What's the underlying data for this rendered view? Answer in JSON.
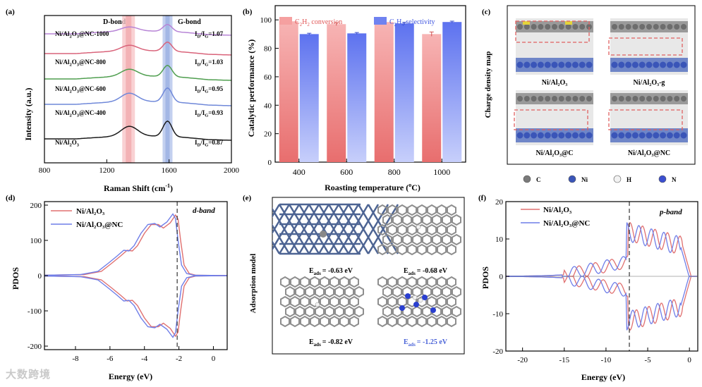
{
  "watermark": "大数跨境",
  "panels": {
    "a": {
      "label": "(a)",
      "band_d": "D-bond",
      "band_g": "G-bond",
      "xlabel": "Raman Shift (cm",
      "xlabel_sup": "-1",
      "xlabel_end": ")",
      "ylabel": "Intensity (a.u.)",
      "xticks": [
        "800",
        "1200",
        "1600",
        "2000"
      ],
      "samples": [
        {
          "name": "Ni/Al",
          "sub": "2",
          "mid": "O",
          "sub2": "3",
          "tail": "@NC-1000",
          "ratio": "1.07",
          "color": "#b784d6"
        },
        {
          "name": "Ni/Al",
          "sub": "2",
          "mid": "O",
          "sub2": "3",
          "tail": "@NC-800",
          "ratio": "1.03",
          "color": "#d9637a"
        },
        {
          "name": "Ni/Al",
          "sub": "2",
          "mid": "O",
          "sub2": "3",
          "tail": "@NC-600",
          "ratio": "0.95",
          "color": "#4f9e4f"
        },
        {
          "name": "Ni/Al",
          "sub": "2",
          "mid": "O",
          "sub2": "3",
          "tail": "@NC-400",
          "ratio": "0.93",
          "color": "#6f88d9"
        },
        {
          "name": "Ni/Al",
          "sub": "2",
          "mid": "O",
          "sub2": "3",
          "tail": "",
          "ratio": "0.87",
          "color": "#1a1a1a"
        }
      ],
      "ratio_prefix": "I",
      "ratio_sub_d": "D",
      "ratio_mid": "/I",
      "ratio_sub_g": "G",
      "ratio_eq": "="
    },
    "b": {
      "label": "(b)",
      "ylabel": "Catalytic performance (%)",
      "xlabel": "Roasting temperature (",
      "xlabel_deg": "o",
      "xlabel_end": "C)",
      "legend1": "C",
      "legend1_sub1": "2",
      "legend1_mid": "H",
      "legend1_sub2": "2",
      "legend1_tail": " conversion",
      "legend2": "C",
      "legend2_sub1": "2",
      "legend2_mid": "H",
      "legend2_sub2": "4",
      "legend2_tail": " selectivity",
      "yticks": [
        "0",
        "20",
        "40",
        "60",
        "80",
        "100"
      ]
    },
    "c": {
      "label": "(c)",
      "side_label": "Charge density map",
      "cell_labels": [
        "Ni/Al₂O₃",
        "Ni/Al₂O₃-g",
        "Ni/Al₂O₃@C",
        "Ni/Al₂O₃@NC"
      ],
      "atoms": [
        "C",
        "Ni",
        "H",
        "N"
      ]
    },
    "d": {
      "label": "(d)",
      "ylabel": "PDOS",
      "xlabel": "Energy (eV)",
      "annotation": "d-band",
      "legend": [
        "Ni/Al₂O₃",
        "Ni/Al₂O₃@NC"
      ],
      "xticks": [
        "-8",
        "-6",
        "-4",
        "-2",
        "0"
      ],
      "yticks": [
        "200",
        "100",
        "0",
        "-100",
        "-200"
      ]
    },
    "e": {
      "label": "(e)",
      "side_label": "Adsorption model",
      "energies": [
        "E",
        "E",
        "E",
        "E"
      ],
      "energy_sub": "ads",
      "energy_values": [
        "= -0.63 eV",
        "= -0.68 eV",
        "= -0.82 eV",
        "= -1.25 eV"
      ]
    },
    "f": {
      "label": "(f)",
      "ylabel": "PDOS",
      "xlabel": "Energy (eV)",
      "annotation": "p-band",
      "legend": [
        "Ni/Al₂O₃",
        "Ni/Al₂O₃@NC"
      ],
      "xticks": [
        "-20",
        "-15",
        "-10",
        "-5",
        "0"
      ],
      "yticks": [
        "20",
        "10",
        "0",
        "-10",
        "-20"
      ]
    }
  },
  "chart_data": [
    {
      "panel": "a",
      "type": "line",
      "title": "",
      "xlabel": "Raman Shift (cm-1)",
      "ylabel": "Intensity (a.u.)",
      "xlim": [
        800,
        2000
      ],
      "highlight_bands": [
        {
          "name": "D-bond",
          "center": 1340
        },
        {
          "name": "G-bond",
          "center": 1590
        }
      ],
      "series": [
        {
          "name": "Ni/Al2O3@NC-1000",
          "ID_IG": 1.07
        },
        {
          "name": "Ni/Al2O3@NC-800",
          "ID_IG": 1.03
        },
        {
          "name": "Ni/Al2O3@NC-600",
          "ID_IG": 0.95
        },
        {
          "name": "Ni/Al2O3@NC-400",
          "ID_IG": 0.93
        },
        {
          "name": "Ni/Al2O3",
          "ID_IG": 0.87
        }
      ]
    },
    {
      "panel": "b",
      "type": "bar",
      "categories": [
        "400",
        "600",
        "800",
        "1000"
      ],
      "series": [
        {
          "name": "C2H2 conversion",
          "values": [
            99,
            97,
            98.5,
            90
          ],
          "errors": [
            1.5,
            1,
            1.2,
            1.5
          ],
          "color": "#f08a8a"
        },
        {
          "name": "C2H4 selectivity",
          "values": [
            90,
            90.5,
            97.5,
            98.5
          ],
          "errors": [
            0.6,
            0.6,
            0.8,
            0.6
          ],
          "color": "#6e86f0"
        }
      ],
      "xlabel": "Roasting temperature (oC)",
      "ylabel": "Catalytic performance (%)",
      "ylim": [
        0,
        110
      ]
    },
    {
      "panel": "d",
      "type": "line",
      "xlabel": "Energy (eV)",
      "ylabel": "PDOS",
      "xlim": [
        -9.8,
        0.8
      ],
      "ylim": [
        -210,
        210
      ],
      "fermi_marker": -2.1,
      "series": [
        {
          "name": "Ni/Al2O3",
          "color": "#e07070",
          "x": [
            -9.8,
            -7.5,
            -6.5,
            -5.9,
            -5.4,
            -5.0,
            -4.7,
            -4.4,
            -4.0,
            -3.6,
            -3.2,
            -2.9,
            -2.5,
            -2.2,
            -2.05,
            -1.9,
            -1.7,
            -1.4,
            -1.0,
            0.8
          ],
          "y": [
            1,
            3,
            12,
            35,
            55,
            72,
            70,
            85,
            120,
            145,
            145,
            135,
            150,
            172,
            160,
            100,
            30,
            6,
            1,
            0
          ]
        },
        {
          "name": "Ni/Al2O3@NC",
          "color": "#6f7ee8",
          "x": [
            -9.8,
            -7.7,
            -6.7,
            -6.1,
            -5.6,
            -5.2,
            -4.9,
            -4.6,
            -4.2,
            -3.8,
            -3.4,
            -3.1,
            -2.7,
            -2.35,
            -2.2,
            -2.05,
            -1.85,
            -1.55,
            -1.1,
            0.8
          ],
          "y": [
            1,
            3,
            12,
            35,
            55,
            72,
            70,
            85,
            120,
            145,
            148,
            138,
            152,
            175,
            162,
            100,
            30,
            6,
            1,
            0
          ]
        }
      ]
    },
    {
      "panel": "f",
      "type": "line",
      "xlabel": "Energy (eV)",
      "ylabel": "PDOS",
      "xlim": [
        -22,
        1
      ],
      "ylim": [
        -20,
        20
      ],
      "fermi_marker": -7.2,
      "series": [
        {
          "name": "Ni/Al2O3",
          "color": "#e07070"
        },
        {
          "name": "Ni/Al2O3@NC",
          "color": "#6f7ee8"
        }
      ]
    }
  ]
}
